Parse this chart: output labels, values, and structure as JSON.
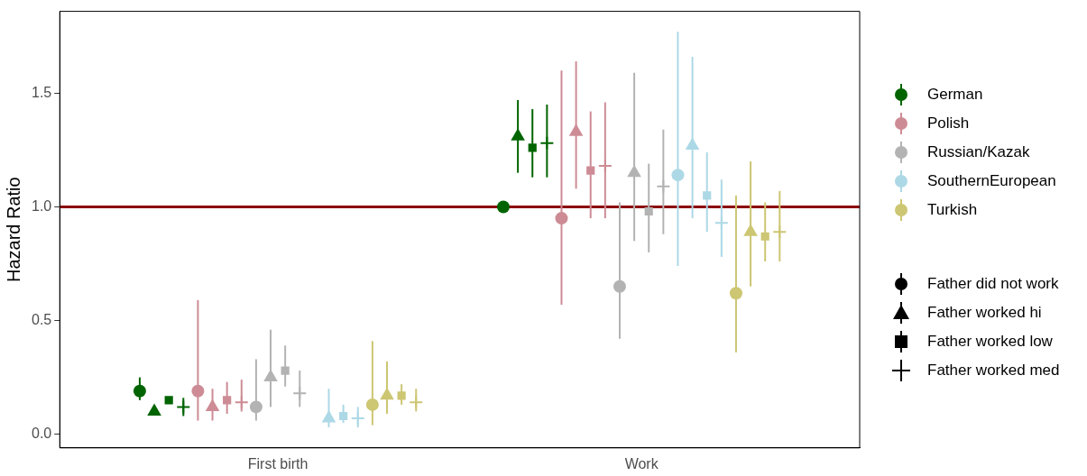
{
  "chart_data": {
    "type": "scatter",
    "ylabel": "Hazard Ratio",
    "categories": [
      "First birth",
      "Work"
    ],
    "ylim": [
      -0.06,
      1.86
    ],
    "yticks": [
      {
        "value": 0,
        "label": "0.0"
      },
      {
        "value": 0.5,
        "label": "0.5"
      },
      {
        "value": 1,
        "label": "1.0"
      },
      {
        "value": 1.5,
        "label": "1.5"
      }
    ],
    "grid": false,
    "legend": "right",
    "ref_lines": [
      {
        "axis": "y",
        "value": 1,
        "color": "#8b0000"
      }
    ],
    "series": [
      {
        "color": "#006400",
        "marker": "circle",
        "values": [
          0.19,
          1.0
        ],
        "errors": [
          [
            0.15,
            0.25
          ],
          null
        ]
      },
      {
        "color": "#006400",
        "marker": "triangle",
        "values": [
          0.1,
          1.31
        ],
        "errors": [
          null,
          [
            1.15,
            1.47
          ]
        ]
      },
      {
        "color": "#006400",
        "marker": "square",
        "values": [
          0.15,
          1.26
        ],
        "errors": [
          null,
          [
            1.13,
            1.43
          ]
        ]
      },
      {
        "color": "#006400",
        "marker": "cross",
        "values": [
          0.12,
          1.28
        ],
        "errors": [
          [
            0.08,
            0.16
          ],
          [
            1.13,
            1.45
          ]
        ]
      },
      {
        "color": "#cd8c95",
        "marker": "circle",
        "values": [
          0.19,
          0.95
        ],
        "errors": [
          [
            0.06,
            0.59
          ],
          [
            0.57,
            1.6
          ]
        ]
      },
      {
        "color": "#cd8c95",
        "marker": "triangle",
        "values": [
          0.12,
          1.33
        ],
        "errors": [
          [
            0.06,
            0.2
          ],
          [
            1.08,
            1.64
          ]
        ]
      },
      {
        "color": "#cd8c95",
        "marker": "square",
        "values": [
          0.15,
          1.16
        ],
        "errors": [
          [
            0.09,
            0.23
          ],
          [
            0.95,
            1.42
          ]
        ]
      },
      {
        "color": "#cd8c95",
        "marker": "cross",
        "values": [
          0.14,
          1.18
        ],
        "errors": [
          [
            0.1,
            0.24
          ],
          [
            0.95,
            1.46
          ]
        ]
      },
      {
        "color": "#b3b3b3",
        "marker": "circle",
        "values": [
          0.12,
          0.65
        ],
        "errors": [
          [
            0.06,
            0.33
          ],
          [
            0.42,
            1.02
          ]
        ]
      },
      {
        "color": "#b3b3b3",
        "marker": "triangle",
        "values": [
          0.25,
          1.15
        ],
        "errors": [
          [
            0.12,
            0.46
          ],
          [
            0.85,
            1.59
          ]
        ]
      },
      {
        "color": "#b3b3b3",
        "marker": "square",
        "values": [
          0.28,
          0.98
        ],
        "errors": [
          [
            0.21,
            0.39
          ],
          [
            0.8,
            1.19
          ]
        ]
      },
      {
        "color": "#b3b3b3",
        "marker": "cross",
        "values": [
          0.18,
          1.09
        ],
        "errors": [
          [
            0.12,
            0.28
          ],
          [
            0.88,
            1.34
          ]
        ]
      },
      {
        "color": "#add8e6",
        "marker": "circle",
        "values": [
          null,
          1.14
        ],
        "errors": [
          null,
          [
            0.74,
            1.77
          ]
        ]
      },
      {
        "color": "#add8e6",
        "marker": "triangle",
        "values": [
          0.07,
          1.27
        ],
        "errors": [
          [
            0.03,
            0.2
          ],
          [
            0.95,
            1.66
          ]
        ]
      },
      {
        "color": "#add8e6",
        "marker": "square",
        "values": [
          0.08,
          1.05
        ],
        "errors": [
          [
            0.05,
            0.13
          ],
          [
            0.89,
            1.24
          ]
        ]
      },
      {
        "color": "#add8e6",
        "marker": "cross",
        "values": [
          0.07,
          0.93
        ],
        "errors": [
          [
            0.03,
            0.12
          ],
          [
            0.78,
            1.12
          ]
        ]
      },
      {
        "color": "#cdc673",
        "marker": "circle",
        "values": [
          0.13,
          0.62
        ],
        "errors": [
          [
            0.04,
            0.41
          ],
          [
            0.36,
            1.05
          ]
        ]
      },
      {
        "color": "#cdc673",
        "marker": "triangle",
        "values": [
          0.17,
          0.89
        ],
        "errors": [
          [
            0.09,
            0.32
          ],
          [
            0.65,
            1.2
          ]
        ]
      },
      {
        "color": "#cdc673",
        "marker": "square",
        "values": [
          0.17,
          0.87
        ],
        "errors": [
          [
            0.13,
            0.22
          ],
          [
            0.76,
            1.02
          ]
        ]
      },
      {
        "color": "#cdc673",
        "marker": "cross",
        "values": [
          0.14,
          0.89
        ],
        "errors": [
          [
            0.1,
            0.2
          ],
          [
            0.76,
            1.07
          ]
        ]
      },
      {
        "name": "German",
        "color": "#006400",
        "marker": "circle",
        "values": [
          null,
          null
        ]
      },
      {
        "name": "Polish",
        "color": "#cd8c95",
        "marker": "circle",
        "values": [
          null,
          null
        ]
      },
      {
        "name": "Russian/Kazak",
        "color": "#b3b3b3",
        "marker": "circle",
        "values": [
          null,
          null
        ]
      },
      {
        "name": "SouthernEuropean",
        "color": "#add8e6",
        "marker": "circle",
        "values": [
          null,
          null
        ]
      },
      {
        "name": "Turkish",
        "color": "#cdc673",
        "marker": "circle",
        "values": [
          null,
          null
        ]
      },
      {
        "name": "Father did not work",
        "color": "#000000",
        "marker": "circle",
        "values": [
          null,
          null
        ]
      },
      {
        "name": "Father worked hi",
        "color": "#000000",
        "marker": "triangle",
        "values": [
          null,
          null
        ]
      },
      {
        "name": "Father worked low",
        "color": "#000000",
        "marker": "square",
        "values": [
          null,
          null
        ]
      },
      {
        "name": "Father worked med",
        "color": "#000000",
        "marker": "cross",
        "values": [
          null,
          null
        ]
      }
    ]
  }
}
